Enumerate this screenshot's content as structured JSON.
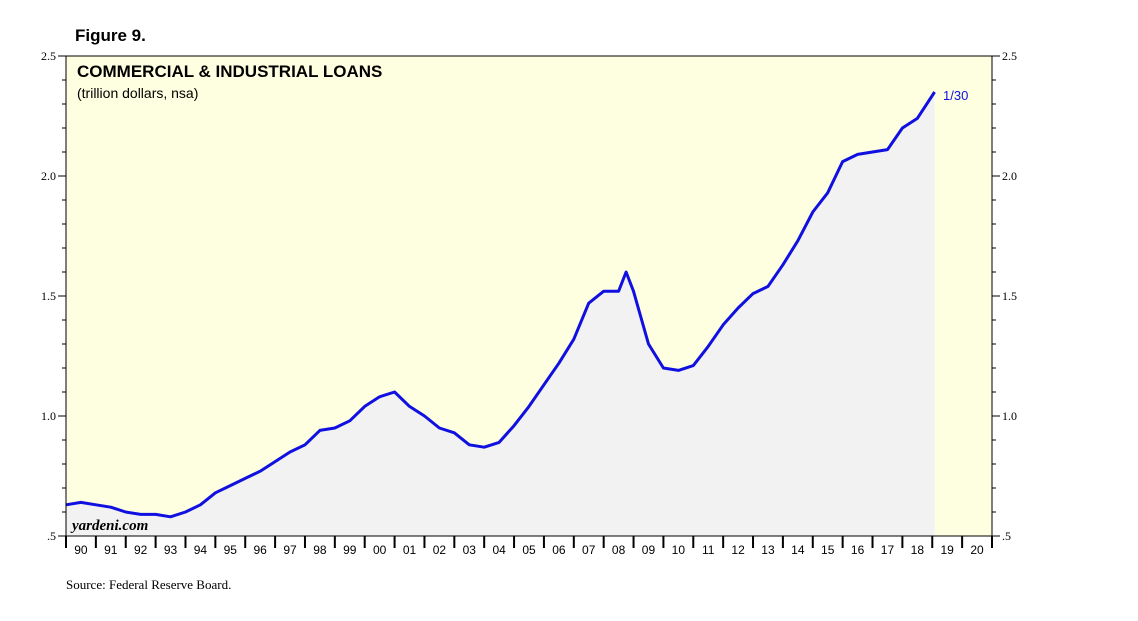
{
  "figure_label": "Figure 9.",
  "source": "Source: Federal Reserve Board.",
  "chart_data": {
    "type": "line",
    "title": "COMMERCIAL & INDUSTRIAL LOANS",
    "subtitle": "(trillion dollars, nsa)",
    "watermark": "yardeni.com",
    "end_label": "1/30",
    "ylim": [
      0.5,
      2.5
    ],
    "y_ticks_left": [
      "2.5",
      "2.0",
      "1.5",
      "1.0",
      ".5"
    ],
    "y_ticks_right": [
      "2.5",
      "2.0",
      "1.5",
      "1.0",
      ".5"
    ],
    "x_range": [
      1990,
      2021
    ],
    "x_tick_labels": [
      "90",
      "91",
      "92",
      "93",
      "94",
      "95",
      "96",
      "97",
      "98",
      "99",
      "00",
      "01",
      "02",
      "03",
      "04",
      "05",
      "06",
      "07",
      "08",
      "09",
      "10",
      "11",
      "12",
      "13",
      "14",
      "15",
      "16",
      "17",
      "18",
      "19",
      "20"
    ],
    "colors": {
      "line": "#1010e0",
      "area": "#f2f2f2",
      "background": "#fefee0"
    },
    "series": [
      {
        "x": [
          1990.0,
          1990.5,
          1991.0,
          1991.5,
          1992.0,
          1992.5,
          1993.0,
          1993.5,
          1994.0,
          1994.5,
          1995.0,
          1995.5,
          1996.0,
          1996.5,
          1997.0,
          1997.5,
          1998.0,
          1998.5,
          1999.0,
          1999.5,
          2000.0,
          2000.5,
          2001.0,
          2001.5,
          2002.0,
          2002.5,
          2003.0,
          2003.5,
          2004.0,
          2004.5,
          2005.0,
          2005.5,
          2006.0,
          2006.5,
          2007.0,
          2007.5,
          2008.0,
          2008.5,
          2008.75,
          2009.0,
          2009.5,
          2010.0,
          2010.5,
          2011.0,
          2011.5,
          2012.0,
          2012.5,
          2013.0,
          2013.5,
          2014.0,
          2014.5,
          2015.0,
          2015.5,
          2016.0,
          2016.5,
          2017.0,
          2017.5,
          2018.0,
          2018.5,
          2019.08
        ],
        "y": [
          0.63,
          0.64,
          0.63,
          0.62,
          0.6,
          0.59,
          0.59,
          0.58,
          0.6,
          0.63,
          0.68,
          0.71,
          0.74,
          0.77,
          0.81,
          0.85,
          0.88,
          0.94,
          0.95,
          0.98,
          1.04,
          1.08,
          1.1,
          1.04,
          1.0,
          0.95,
          0.93,
          0.88,
          0.87,
          0.89,
          0.96,
          1.04,
          1.13,
          1.22,
          1.32,
          1.47,
          1.52,
          1.52,
          1.6,
          1.52,
          1.3,
          1.2,
          1.19,
          1.21,
          1.29,
          1.38,
          1.45,
          1.51,
          1.54,
          1.63,
          1.73,
          1.85,
          1.93,
          2.06,
          2.09,
          2.1,
          2.11,
          2.2,
          2.24,
          2.35
        ]
      }
    ]
  }
}
